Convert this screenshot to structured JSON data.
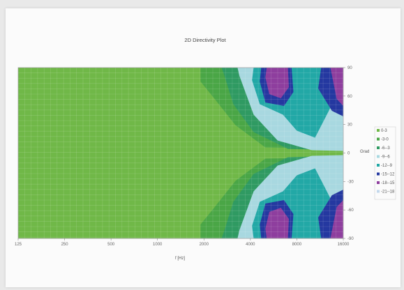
{
  "chart_data": {
    "type": "heatmap",
    "title": "2D Directivity Plot",
    "xlabel": "f [Hz]",
    "ylabel": "Grad",
    "x_scale": "log",
    "xlim": [
      125,
      16000
    ],
    "ylim": [
      -90,
      90
    ],
    "x_ticks": [
      "125",
      "250",
      "500",
      "1000",
      "2000",
      "4000",
      "8000",
      "16000"
    ],
    "y_ticks": [
      "90",
      "60",
      "30",
      "0",
      "-30",
      "-60",
      "-90"
    ],
    "legend_position": "right",
    "legend": [
      {
        "label": "0-3",
        "color": "#70b848"
      },
      {
        "label": "-3-0",
        "color": "#4aa646"
      },
      {
        "label": "-6--3",
        "color": "#2f9a62"
      },
      {
        "label": "-9--6",
        "color": "#a8d8e0"
      },
      {
        "label": "-12--9",
        "color": "#22a8a6"
      },
      {
        "label": "-15--12",
        "color": "#2438a0"
      },
      {
        "label": "-18--15",
        "color": "#8e3e9e"
      },
      {
        "label": "-21--18",
        "color": "#c3d8ec"
      }
    ],
    "grid": true
  }
}
